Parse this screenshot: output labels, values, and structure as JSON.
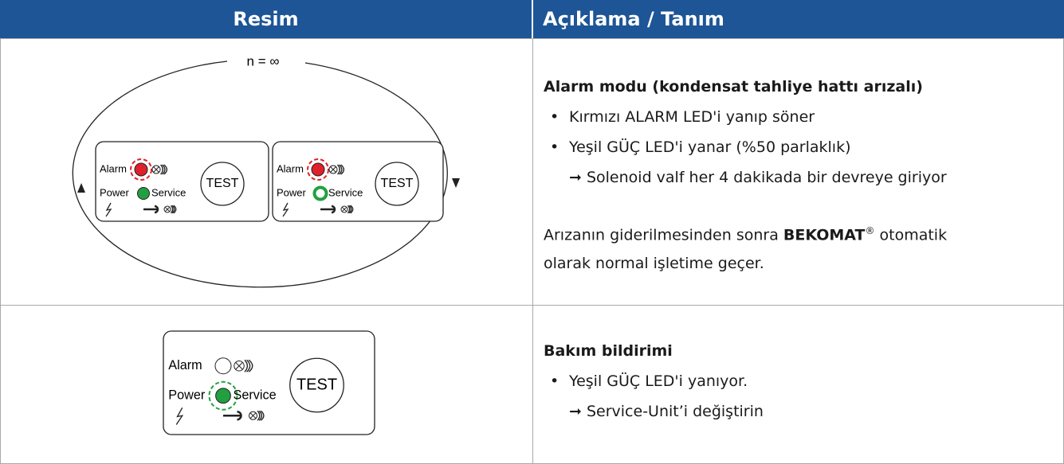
{
  "header": {
    "columns": [
      "Resim",
      "Açıklama / Tanım"
    ]
  },
  "image_labels": {
    "cycle": "n = ∞",
    "alarm": "Alarm",
    "power": "Power",
    "service": "Service",
    "test": "TEST"
  },
  "rows": [
    {
      "title": "Alarm modu (kondensat tahliye hattı arızalı)",
      "bullets": [
        "Kırmızı ALARM LED'i yanıp söner",
        "Yeşil GÜÇ LED'i yanar (%50 parlaklık)"
      ],
      "note": "Solenoid valf her 4 dakikada bir devreye giriyor",
      "paragraph": [
        "Arızanın giderilmesinden sonra ",
        "BEKOMAT",
        "®",
        " otomatik olarak normal işletime geçer."
      ]
    },
    {
      "title": "Bakım bildirimi",
      "bullets": [
        "Yeşil GÜÇ LED'i yanıyor."
      ],
      "note": "Service-Unit’i değiştirin"
    }
  ]
}
